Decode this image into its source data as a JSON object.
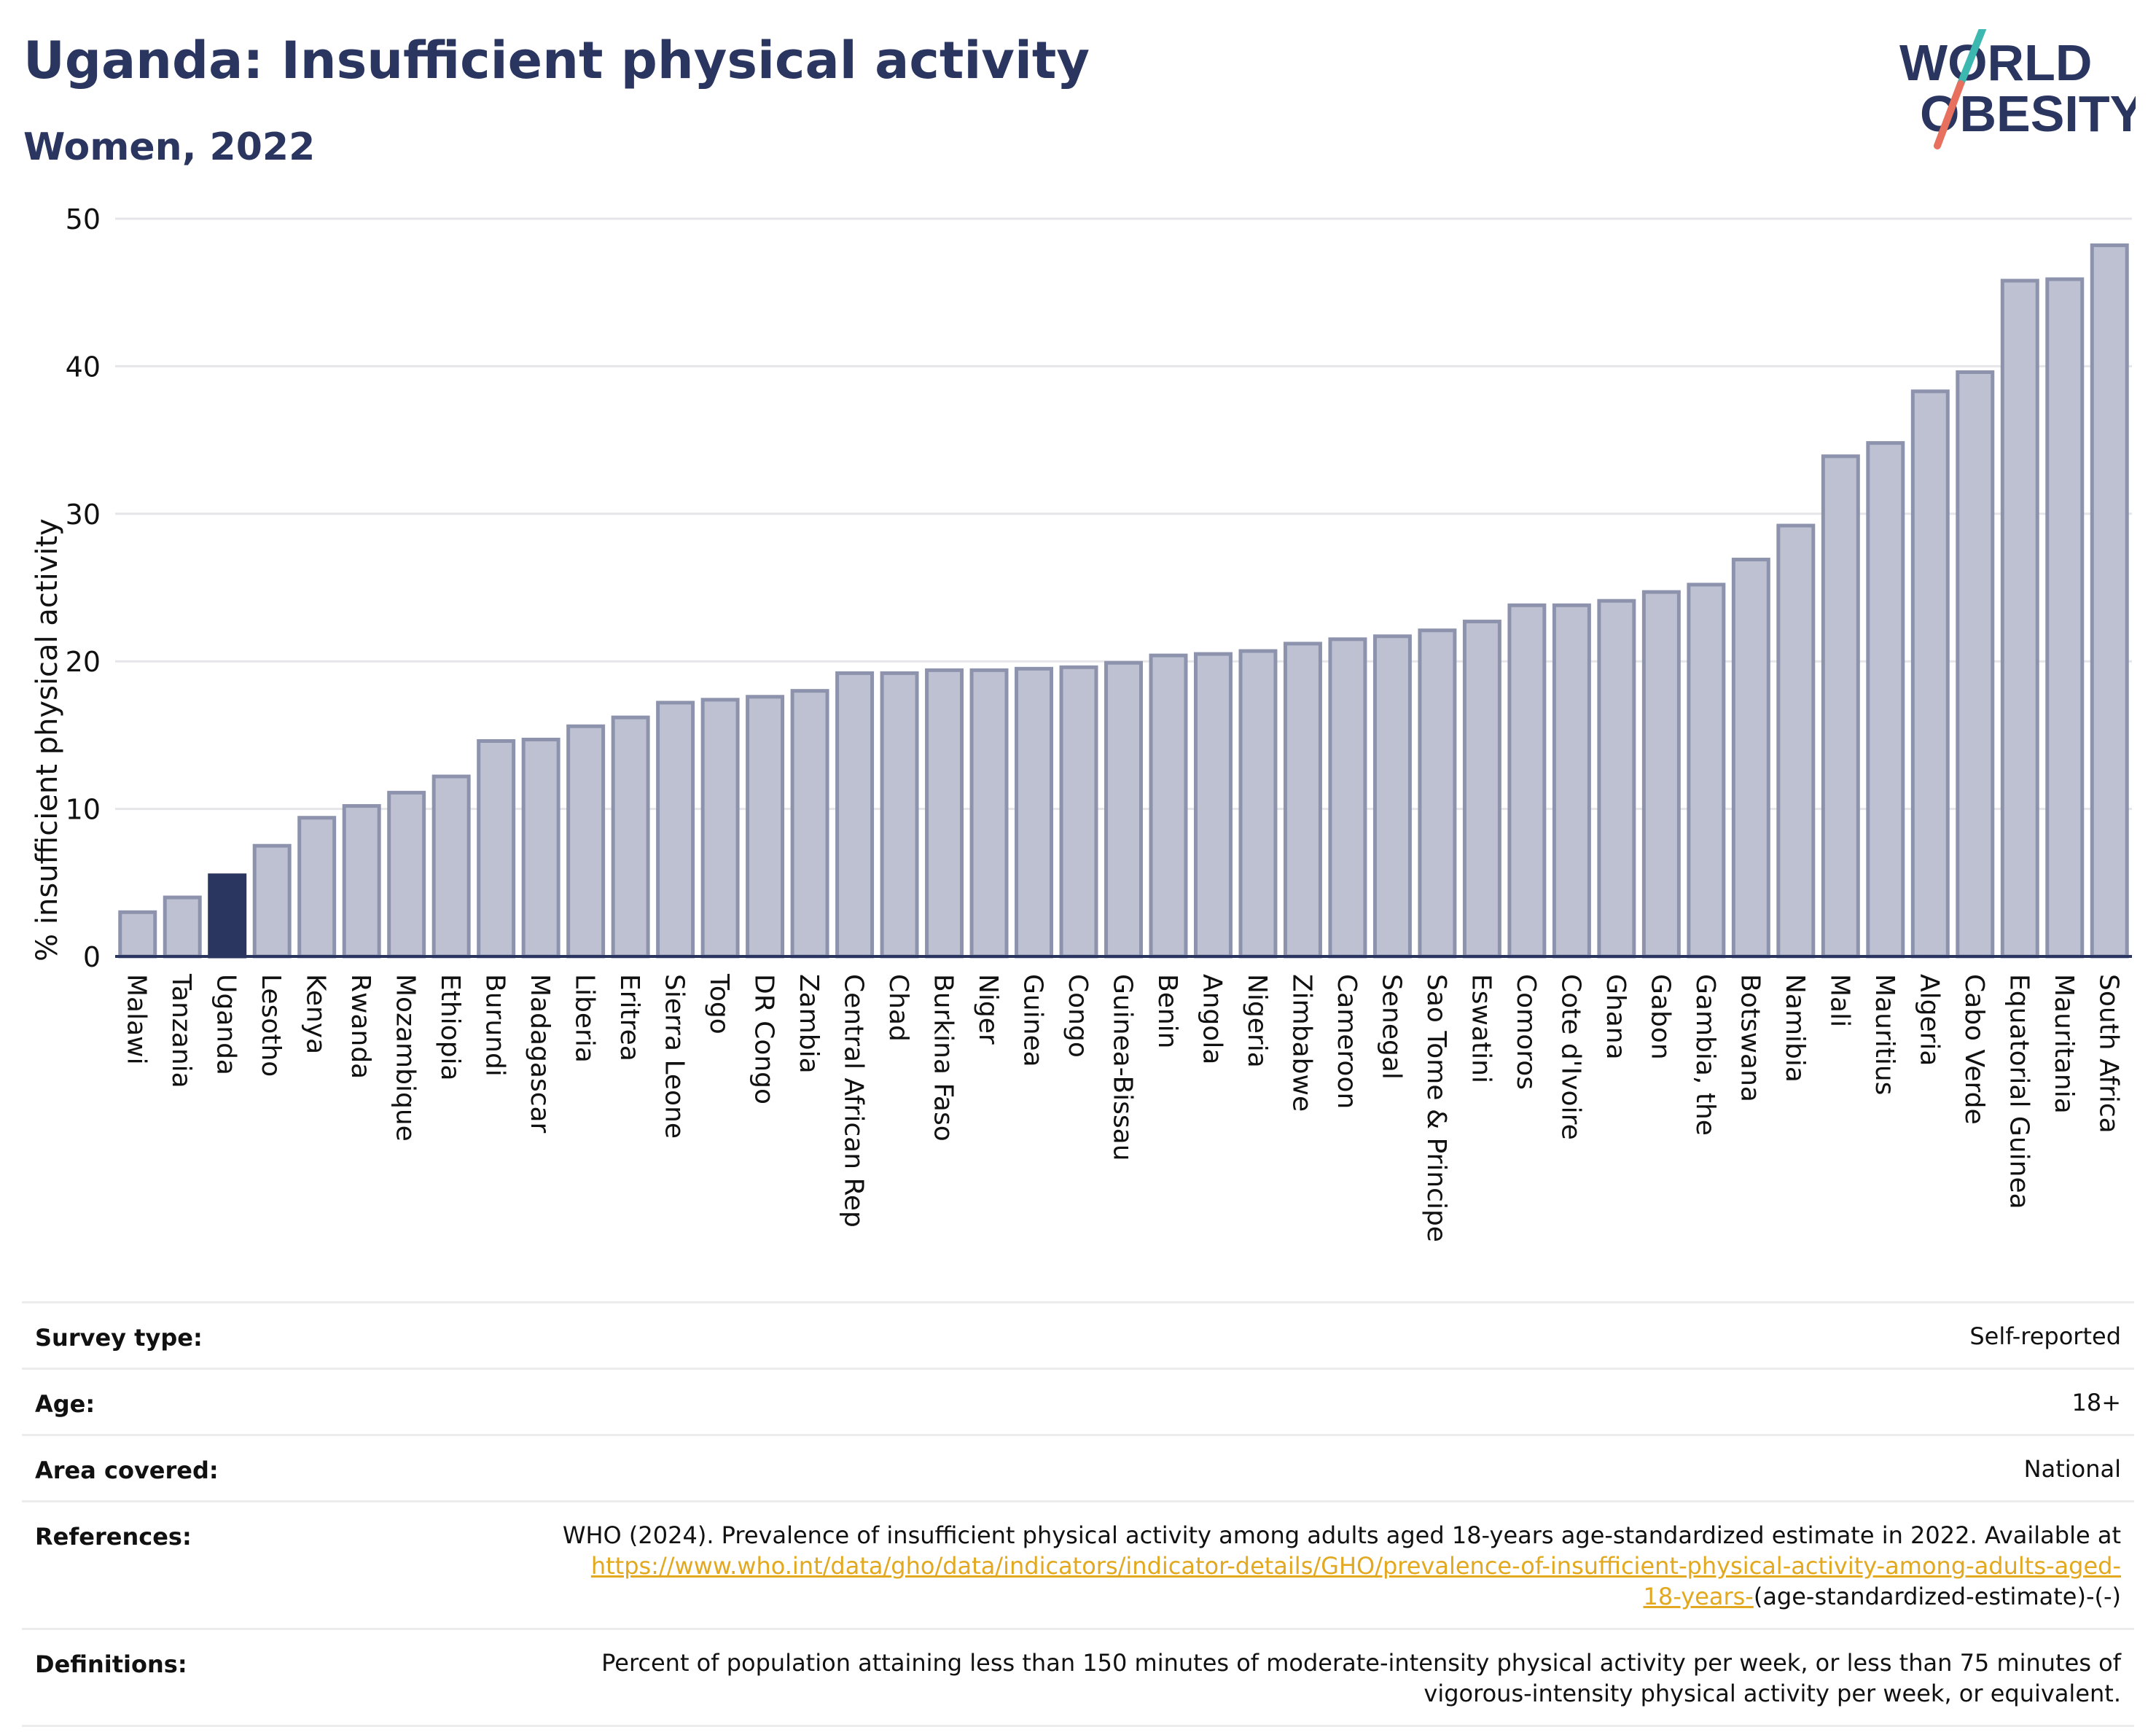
{
  "title": "Uganda: Insufficient physical activity",
  "subtitle": "Women, 2022",
  "logo": {
    "line1": "WORLD",
    "line2": "OBESITY",
    "icon": "world-obesity-logo"
  },
  "colors": {
    "highlight": "#2a3560",
    "bar": "#bec1d1",
    "bar_border": "#8e93ad",
    "title": "#2a3560",
    "link": "#e2a81f"
  },
  "chart_data": {
    "type": "bar",
    "title": "Uganda: Insufficient physical activity",
    "subtitle": "Women, 2022",
    "xlabel": "",
    "ylabel": "% insufficient physical activity",
    "ylim": [
      0,
      50
    ],
    "yticks": [
      0,
      10,
      20,
      30,
      40,
      50
    ],
    "grid": true,
    "highlight": "Uganda",
    "categories": [
      "Malawi",
      "Tanzania",
      "Uganda",
      "Lesotho",
      "Kenya",
      "Rwanda",
      "Mozambique",
      "Ethiopia",
      "Burundi",
      "Madagascar",
      "Liberia",
      "Eritrea",
      "Sierra Leone",
      "Togo",
      "DR Congo",
      "Zambia",
      "Central African Rep",
      "Chad",
      "Burkina Faso",
      "Niger",
      "Guinea",
      "Congo",
      "Guinea-Bissau",
      "Benin",
      "Angola",
      "Nigeria",
      "Zimbabwe",
      "Cameroon",
      "Senegal",
      "Sao Tome & Principe",
      "Eswatini",
      "Comoros",
      "Cote d'Ivoire",
      "Ghana",
      "Gabon",
      "Gambia, the",
      "Botswana",
      "Namibia",
      "Mali",
      "Mauritius",
      "Algeria",
      "Cabo Verde",
      "Equatorial Guinea",
      "Mauritania",
      "South Africa"
    ],
    "values": [
      3.0,
      4.0,
      5.5,
      7.5,
      9.4,
      10.2,
      11.1,
      12.2,
      14.6,
      14.7,
      15.6,
      16.2,
      17.2,
      17.4,
      17.6,
      18.0,
      19.2,
      19.2,
      19.4,
      19.4,
      19.5,
      19.6,
      19.9,
      20.4,
      20.5,
      20.7,
      21.2,
      21.5,
      21.7,
      22.1,
      22.7,
      23.8,
      23.8,
      24.1,
      24.7,
      25.2,
      26.9,
      29.2,
      33.9,
      34.8,
      38.3,
      39.6,
      45.8,
      45.9,
      48.2
    ]
  },
  "meta": {
    "survey_type": {
      "label": "Survey type:",
      "value": "Self-reported"
    },
    "age": {
      "label": "Age:",
      "value": "18+"
    },
    "area": {
      "label": "Area covered:",
      "value": "National"
    },
    "references": {
      "label": "References:",
      "text": "WHO (2024). Prevalence of insufficient physical activity among adults aged 18-years age-standardized estimate in 2022. Available at",
      "link": "https://www.who.int/data/gho/data/indicators/indicator-details/GHO/prevalence-of-insufficient-physical-activity-among-adults-aged-18-years-",
      "suffix": "(age-standardized-estimate)-(-)"
    },
    "definitions": {
      "label": "Definitions:",
      "value": "Percent of population attaining less than 150 minutes of moderate-intensity physical activity per week, or less than 75 minutes of vigorous-intensity physical activity per week, or equivalent."
    }
  }
}
